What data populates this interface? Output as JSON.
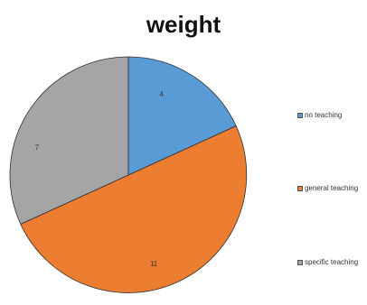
{
  "chart_data": {
    "type": "pie",
    "title": "weight",
    "slices": [
      {
        "name": "no teaching",
        "value": 4,
        "label": "4",
        "color": "#5b9bd5"
      },
      {
        "name": "general teaching",
        "value": 11,
        "label": "11",
        "color": "#ed7d31"
      },
      {
        "name": "specific teaching",
        "value": 7,
        "label": "7",
        "color": "#a5a5a5"
      }
    ],
    "legend_position": "right"
  }
}
